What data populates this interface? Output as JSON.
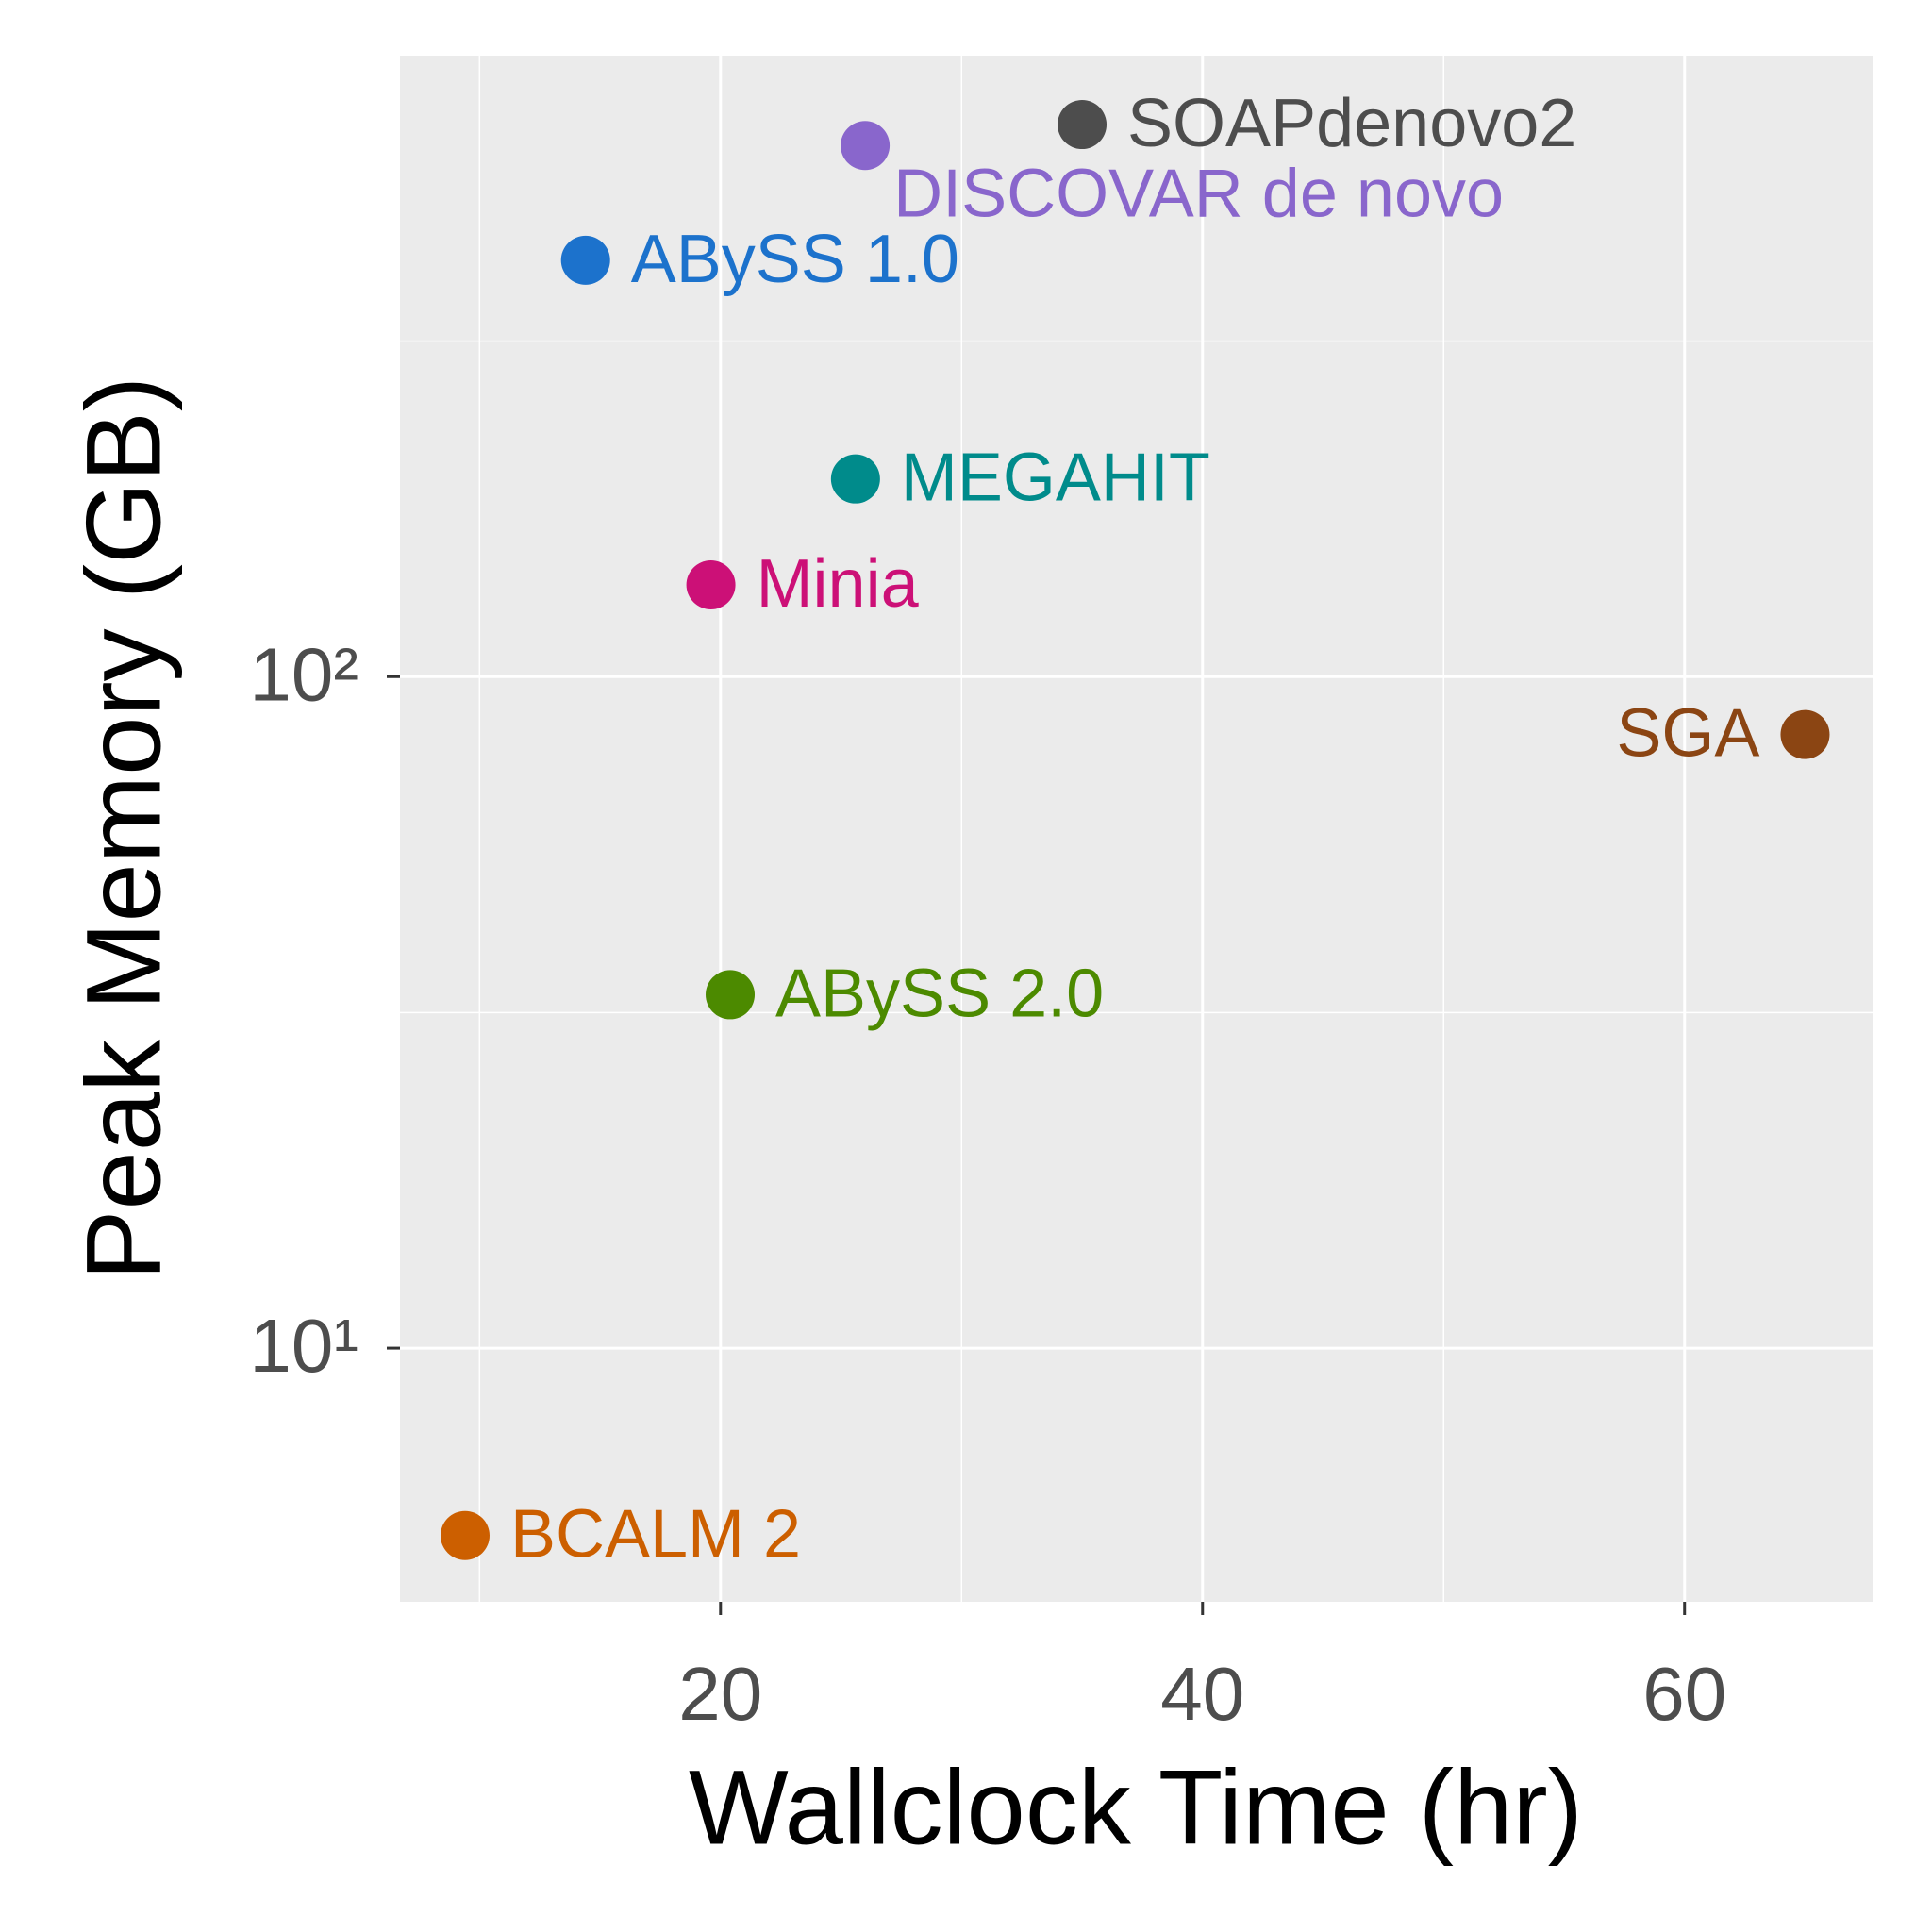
{
  "chart_data": {
    "type": "scatter",
    "x_label": "Wallclock Time (hr)",
    "y_label": "Peak Memory (GB)",
    "xlim": [
      6.7,
      67.8
    ],
    "xticks": [
      20,
      40,
      60
    ],
    "x_minor_grid": [
      10,
      30,
      50
    ],
    "ylim": [
      4.19,
      841
    ],
    "yticks": [
      {
        "value": 10,
        "label": "10¹"
      },
      {
        "value": 100,
        "label": "10²"
      }
    ],
    "y_minor_grid": [
      31.6,
      316
    ],
    "y_log": true,
    "grid": true,
    "series": [
      {
        "name": "SOAPdenovo2",
        "color": "#4d4d4d",
        "x": [
          35.0
        ],
        "values": [
          664
        ]
      },
      {
        "name": "DISCOVAR de novo",
        "color": "#8966cc",
        "x": [
          26.0
        ],
        "values": [
          618
        ]
      },
      {
        "name": "ABySS 1.0",
        "color": "#1c72cc",
        "x": [
          14.4
        ],
        "values": [
          417
        ]
      },
      {
        "name": "MEGAHIT",
        "color": "#008b8b",
        "x": [
          25.6
        ],
        "values": [
          197
        ]
      },
      {
        "name": "Minia",
        "color": "#cc1077",
        "x": [
          19.6
        ],
        "values": [
          137
        ]
      },
      {
        "name": "SGA",
        "color": "#8b4513",
        "x": [
          65.0
        ],
        "values": [
          82
        ]
      },
      {
        "name": "ABySS 2.0",
        "color": "#4c8a00",
        "x": [
          20.4
        ],
        "values": [
          33.6
        ]
      },
      {
        "name": "BCALM 2",
        "color": "#cc5f00",
        "x": [
          9.4
        ],
        "values": [
          5.26
        ]
      }
    ]
  }
}
